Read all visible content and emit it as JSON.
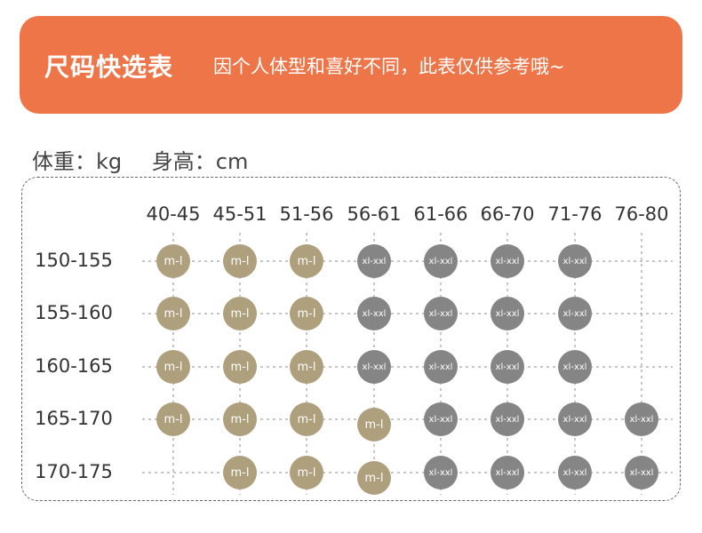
{
  "banner": {
    "title": "尺码快选表",
    "subtitle": "因个人体型和喜好不同，此表仅供参考哦~",
    "color": "#ee7548"
  },
  "units": {
    "weight_label": "体重：kg",
    "height_label": "身高：cm"
  },
  "colors": {
    "m_l": "#ae9f7d",
    "xl_xxl": "#858585"
  },
  "table": {
    "weight_ranges": [
      "40-45",
      "45-51",
      "51-56",
      "56-61",
      "61-66",
      "66-70",
      "71-76",
      "76-80"
    ],
    "height_ranges": [
      "150-155",
      "155-160",
      "160-165",
      "165-170",
      "170-175"
    ],
    "cells": [
      [
        "m-l",
        "m-l",
        "m-l",
        "xl-xxl",
        "xl-xxl",
        "xl-xxl",
        "xl-xxl",
        ""
      ],
      [
        "m-l",
        "m-l",
        "m-l",
        "xl-xxl",
        "xl-xxl",
        "xl-xxl",
        "xl-xxl",
        ""
      ],
      [
        "m-l",
        "m-l",
        "m-l",
        "xl-xxl",
        "xl-xxl",
        "xl-xxl",
        "xl-xxl",
        ""
      ],
      [
        "m-l",
        "m-l",
        "m-l",
        "m-l",
        "xl-xxl",
        "xl-xxl",
        "xl-xxl",
        "xl-xxl"
      ],
      [
        "",
        "m-l",
        "m-l",
        "m-l",
        "xl-xxl",
        "xl-xxl",
        "xl-xxl",
        "xl-xxl"
      ]
    ]
  }
}
